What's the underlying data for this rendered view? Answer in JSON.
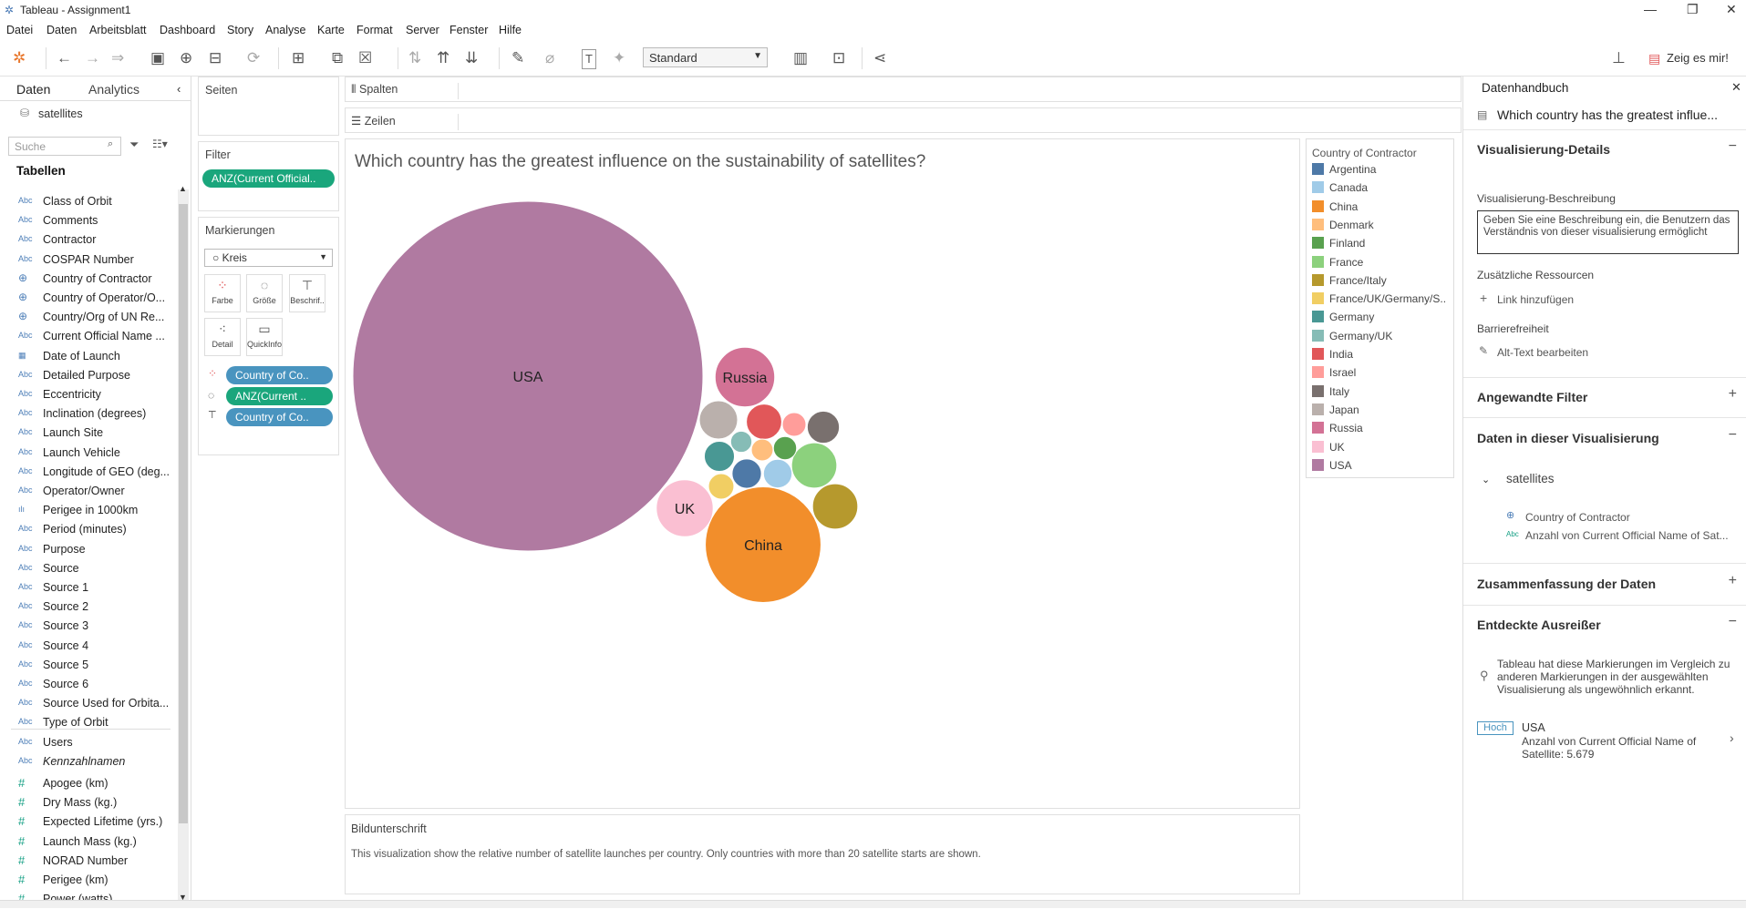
{
  "window": {
    "title": "Tableau - Assignment1"
  },
  "menu": [
    "Datei",
    "Daten",
    "Arbeitsblatt",
    "Dashboard",
    "Story",
    "Analyse",
    "Karte",
    "Format",
    "Server",
    "Fenster",
    "Hilfe"
  ],
  "toolbar": {
    "standard": "Standard",
    "show_me": "Zeig es mir!"
  },
  "datapane": {
    "tab_data": "Daten",
    "tab_analytics": "Analytics",
    "datasource": "satellites",
    "search_placeholder": "Suche",
    "tables_heading": "Tabellen",
    "fields": [
      {
        "t": "abc",
        "n": "Class of Orbit"
      },
      {
        "t": "abc",
        "n": "Comments"
      },
      {
        "t": "abc",
        "n": "Contractor"
      },
      {
        "t": "abc",
        "n": "COSPAR Number"
      },
      {
        "t": "geo",
        "n": "Country of Contractor"
      },
      {
        "t": "geo",
        "n": "Country of Operator/O..."
      },
      {
        "t": "geo",
        "n": "Country/Org of UN Re..."
      },
      {
        "t": "abc",
        "n": "Current Official Name ..."
      },
      {
        "t": "date",
        "n": "Date of Launch"
      },
      {
        "t": "abc",
        "n": "Detailed Purpose"
      },
      {
        "t": "abc",
        "n": "Eccentricity"
      },
      {
        "t": "abc",
        "n": "Inclination (degrees)"
      },
      {
        "t": "abc",
        "n": "Launch Site"
      },
      {
        "t": "abc",
        "n": "Launch Vehicle"
      },
      {
        "t": "abc",
        "n": "Longitude of GEO (deg..."
      },
      {
        "t": "abc",
        "n": "Operator/Owner"
      },
      {
        "t": "bin",
        "n": "Perigee in 1000km"
      },
      {
        "t": "abc",
        "n": "Period (minutes)"
      },
      {
        "t": "abc",
        "n": "Purpose"
      },
      {
        "t": "abc",
        "n": "Source"
      },
      {
        "t": "abc",
        "n": "Source 1"
      },
      {
        "t": "abc",
        "n": "Source 2"
      },
      {
        "t": "abc",
        "n": "Source 3"
      },
      {
        "t": "abc",
        "n": "Source 4"
      },
      {
        "t": "abc",
        "n": "Source 5"
      },
      {
        "t": "abc",
        "n": "Source 6"
      },
      {
        "t": "abc",
        "n": "Source Used for Orbita..."
      },
      {
        "t": "abc",
        "n": "Type of Orbit"
      },
      {
        "t": "abc",
        "n": "Users"
      },
      {
        "t": "abc",
        "n": "Kennzahlnamen"
      },
      {
        "t": "num",
        "n": "Apogee (km)"
      },
      {
        "t": "num",
        "n": "Dry Mass (kg.)"
      },
      {
        "t": "num",
        "n": "Expected Lifetime (yrs.)"
      },
      {
        "t": "num",
        "n": "Launch Mass (kg.)"
      },
      {
        "t": "num",
        "n": "NORAD Number"
      },
      {
        "t": "num",
        "n": "Perigee (km)"
      },
      {
        "t": "num",
        "n": "Power (watts)"
      }
    ]
  },
  "shelves": {
    "pages": "Seiten",
    "filter": "Filter",
    "filter_pill": "ANZ(Current Official..",
    "marks": "Markierungen",
    "mark_type": "Kreis",
    "btn_color": "Farbe",
    "btn_size": "Größe",
    "btn_label": "Beschrif..",
    "btn_detail": "Detail",
    "btn_tooltip": "QuickInfo",
    "pill_color": "Country of Co..",
    "pill_size": "ANZ(Current ..",
    "pill_label": "Country of Co..",
    "columns": "Spalten",
    "rows": "Zeilen"
  },
  "viz": {
    "title": "Which country has the greatest influence on the sustainability of satellites?",
    "caption_title": "Bildunterschrift",
    "caption_text": "This visualization show the relative number of satellite launches per country. Only countries with more than 20 satellite starts are shown."
  },
  "legend": {
    "title": "Country of Contractor",
    "items": [
      {
        "name": "Argentina",
        "color": "#4e79a7"
      },
      {
        "name": "Canada",
        "color": "#a0cbe8"
      },
      {
        "name": "China",
        "color": "#f28e2b"
      },
      {
        "name": "Denmark",
        "color": "#ffbe7d"
      },
      {
        "name": "Finland",
        "color": "#59a14f"
      },
      {
        "name": "France",
        "color": "#8cd17d"
      },
      {
        "name": "France/Italy",
        "color": "#b6992d"
      },
      {
        "name": "France/UK/Germany/S..",
        "color": "#f1ce63"
      },
      {
        "name": "Germany",
        "color": "#499894"
      },
      {
        "name": "Germany/UK",
        "color": "#86bcb6"
      },
      {
        "name": "India",
        "color": "#e15759"
      },
      {
        "name": "Israel",
        "color": "#ff9d9a"
      },
      {
        "name": "Italy",
        "color": "#79706e"
      },
      {
        "name": "Japan",
        "color": "#bab0ac"
      },
      {
        "name": "Russia",
        "color": "#d37295"
      },
      {
        "name": "UK",
        "color": "#fabfd2"
      },
      {
        "name": "USA",
        "color": "#b07aa1"
      }
    ]
  },
  "chart_data": {
    "type": "packed-bubble",
    "bubbles": [
      {
        "label": "USA",
        "value": 5679,
        "color": "#b07aa1",
        "show_label": true
      },
      {
        "label": "China",
        "value": 620,
        "color": "#f28e2b",
        "show_label": true
      },
      {
        "label": "Russia",
        "value": 165,
        "color": "#d37295",
        "show_label": true
      },
      {
        "label": "UK",
        "value": 150,
        "color": "#fabfd2",
        "show_label": true
      },
      {
        "label": "France/Italy",
        "value": 95,
        "color": "#b6992d",
        "show_label": false
      },
      {
        "label": "France",
        "value": 95,
        "color": "#8cd17d",
        "show_label": false
      },
      {
        "label": "Japan",
        "value": 68,
        "color": "#bab0ac",
        "show_label": false
      },
      {
        "label": "India",
        "value": 58,
        "color": "#e15759",
        "show_label": false
      },
      {
        "label": "Italy",
        "value": 48,
        "color": "#79706e",
        "show_label": false
      },
      {
        "label": "Germany",
        "value": 42,
        "color": "#499894",
        "show_label": false
      },
      {
        "label": "Argentina",
        "value": 40,
        "color": "#4e79a7",
        "show_label": false
      },
      {
        "label": "Canada",
        "value": 38,
        "color": "#a0cbe8",
        "show_label": false
      },
      {
        "label": "Israel",
        "value": 26,
        "color": "#ff9d9a",
        "show_label": false
      },
      {
        "label": "France/UK/Germany/S..",
        "value": 30,
        "color": "#f1ce63",
        "show_label": false
      },
      {
        "label": "Finland",
        "value": 25,
        "color": "#59a14f",
        "show_label": false
      },
      {
        "label": "Denmark",
        "value": 22,
        "color": "#ffbe7d",
        "show_label": false
      },
      {
        "label": "Germany/UK",
        "value": 21,
        "color": "#86bcb6",
        "show_label": false
      }
    ]
  },
  "guide": {
    "title": "Datenhandbuch",
    "viz_title": "Which country has the greatest influe...",
    "details_heading": "Visualisierung-Details",
    "desc_label": "Visualisierung-Beschreibung",
    "desc_placeholder": "Geben Sie eine Beschreibung ein, die Benutzern das Verständnis von dieser visualisierung ermöglicht",
    "resources_label": "Zusätzliche Ressourcen",
    "add_link": "Link hinzufügen",
    "accessibility_label": "Barrierefreiheit",
    "alt_text": "Alt-Text bearbeiten",
    "filters_heading": "Angewandte Filter",
    "data_heading": "Daten in dieser Visualisierung",
    "data_source": "satellites",
    "data_field_1": "Country of Contractor",
    "data_field_2": "Anzahl von Current Official Name of Sat...",
    "summary_heading": "Zusammenfassung der Daten",
    "outliers_heading": "Entdeckte Ausreißer",
    "outliers_text": "Tableau hat diese Markierungen im Vergleich zu anderen Markierungen in der ausgewählten Visualisierung als ungewöhnlich erkannt.",
    "badge": "Hoch",
    "outlier_name": "USA",
    "outlier_detail": "Anzahl von Current Official Name of Satellite: 5.679"
  }
}
